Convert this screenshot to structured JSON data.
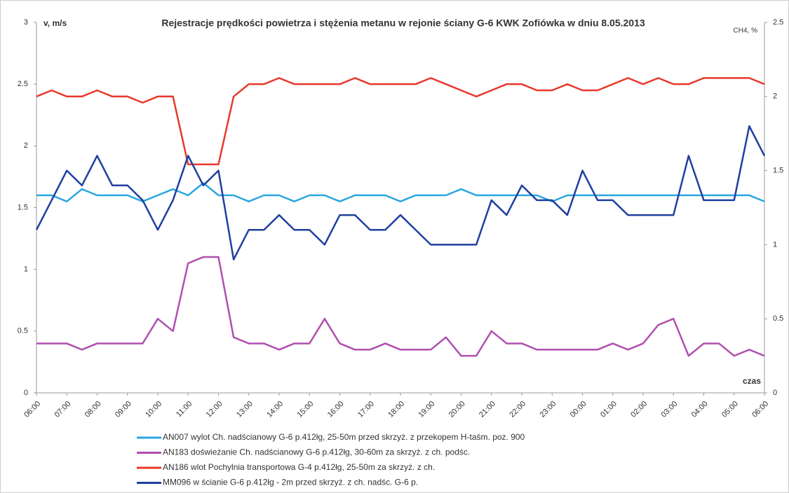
{
  "chart_data": {
    "type": "line",
    "title": "Rejestracje prędkości powietrza  i stężenia metanu w rejonie ściany G-6 KWK Zofiówka w dniu 8.05.2013",
    "y_label": "v, m/s",
    "y2_label": "CH4, %",
    "x_label": "czas",
    "categories": [
      "06:00",
      null,
      "07:00",
      null,
      "08:00",
      null,
      "09:00",
      null,
      "10:00",
      null,
      "11:00",
      null,
      "12:00",
      null,
      "13:00",
      null,
      "14:00",
      null,
      "15:00",
      null,
      "16:00",
      null,
      "17:00",
      null,
      "18:00",
      null,
      "19:00",
      null,
      "20:00",
      null,
      "21:00",
      null,
      "22:00",
      null,
      "23:00",
      null,
      "00:00",
      null,
      "01:00",
      null,
      "02:00",
      null,
      "03:00",
      null,
      "04:00",
      null,
      "05:00",
      null,
      "06:00"
    ],
    "ylim": [
      0,
      3
    ],
    "yticks": [
      0,
      0.5,
      1,
      1.5,
      2,
      2.5,
      3
    ],
    "y2lim": [
      0,
      2.5
    ],
    "y2ticks": [
      0,
      0.5,
      1,
      1.5,
      2,
      2.5
    ],
    "grid": false,
    "legend": "bottom",
    "series": [
      {
        "name": "AN007 wylot Ch. nadścianowy G-6 p.412łg, 25-50m przed skrzyż. z przekopem H-taśm. poz. 900",
        "color": "#2aa7df",
        "values": [
          1.6,
          1.6,
          1.55,
          1.65,
          1.6,
          1.6,
          1.6,
          1.55,
          1.6,
          1.65,
          1.6,
          1.7,
          1.6,
          1.6,
          1.55,
          1.6,
          1.6,
          1.55,
          1.6,
          1.6,
          1.55,
          1.6,
          1.6,
          1.6,
          1.55,
          1.6,
          1.6,
          1.6,
          1.65,
          1.6,
          1.6,
          1.6,
          1.6,
          1.6,
          1.55,
          1.6,
          1.6,
          1.6,
          1.6,
          1.6,
          1.6,
          1.6,
          1.6,
          1.6,
          1.6,
          1.6,
          1.6,
          1.6,
          1.55
        ]
      },
      {
        "name": "AN183 doświeżanie Ch. nadścianowy G-6 p.412łg, 30-60m za skrzyż. z ch. podśc.",
        "color": "#b04fb0",
        "values": [
          0.4,
          0.4,
          0.4,
          0.35,
          0.4,
          0.4,
          0.4,
          0.4,
          0.6,
          0.5,
          1.05,
          1.1,
          1.1,
          0.45,
          0.4,
          0.4,
          0.35,
          0.4,
          0.4,
          0.6,
          0.4,
          0.35,
          0.35,
          0.4,
          0.35,
          0.35,
          0.35,
          0.45,
          0.3,
          0.3,
          0.5,
          0.4,
          0.4,
          0.35,
          0.35,
          0.35,
          0.35,
          0.35,
          0.4,
          0.35,
          0.4,
          0.55,
          0.6,
          0.3,
          0.4,
          0.4,
          0.3,
          0.35,
          0.3
        ]
      },
      {
        "name": "AN186 wlot Pochylnia transportowa G-4 p.412łg, 25-50m za skrzyż. z ch.",
        "color": "#e8392c",
        "values": [
          2.4,
          2.45,
          2.4,
          2.4,
          2.45,
          2.4,
          2.4,
          2.35,
          2.4,
          2.4,
          1.85,
          1.85,
          1.85,
          2.4,
          2.5,
          2.5,
          2.55,
          2.5,
          2.5,
          2.5,
          2.5,
          2.55,
          2.5,
          2.5,
          2.5,
          2.5,
          2.55,
          2.5,
          2.45,
          2.4,
          2.45,
          2.5,
          2.5,
          2.45,
          2.45,
          2.5,
          2.45,
          2.45,
          2.5,
          2.55,
          2.5,
          2.55,
          2.5,
          2.5,
          2.55,
          2.55,
          2.55,
          2.55,
          2.5
        ]
      },
      {
        "name": "MM096 w ścianie G-6 p.412łg - 2m przed skrzyż. z ch. nadśc. G-6 p.",
        "color": "#1f3fa0",
        "axis": "y2",
        "values": [
          1.1,
          1.3,
          1.5,
          1.4,
          1.6,
          1.4,
          1.4,
          1.3,
          1.1,
          1.3,
          1.6,
          1.4,
          1.5,
          0.9,
          1.1,
          1.1,
          1.2,
          1.1,
          1.1,
          1.0,
          1.2,
          1.2,
          1.1,
          1.1,
          1.2,
          1.1,
          1.0,
          1.0,
          1.0,
          1.0,
          1.3,
          1.2,
          1.4,
          1.3,
          1.3,
          1.2,
          1.5,
          1.3,
          1.3,
          1.2,
          1.2,
          1.2,
          1.2,
          1.6,
          1.3,
          1.3,
          1.3,
          1.8,
          1.6
        ]
      }
    ]
  }
}
